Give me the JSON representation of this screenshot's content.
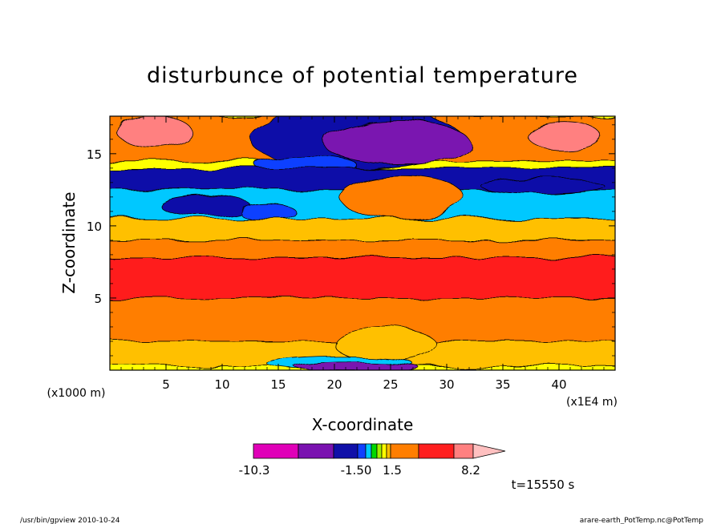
{
  "chart_data": {
    "type": "heatmap",
    "title": "disturbunce of potential temperature",
    "xlabel": "X-coordinate",
    "ylabel": "Z-coordinate",
    "x_unit": "(x1E4 m)",
    "y_unit": "(x1000 m)",
    "xlim": [
      0,
      45
    ],
    "ylim": [
      0,
      17.6
    ],
    "xticks": [
      "5",
      "10",
      "15",
      "20",
      "25",
      "30",
      "35",
      "40"
    ],
    "yticks": [
      "5",
      "10",
      "15"
    ],
    "colorbar": {
      "labels": [
        "-10.3",
        "-1.50",
        "1.5",
        "8.2"
      ],
      "colors": [
        "#e000b8",
        "#7a12b0",
        "#1010a8",
        "#1040ff",
        "#00c8ff",
        "#00d800",
        "#a0f000",
        "#ffff00",
        "#ffc000",
        "#ff7e00",
        "#ff1e1e",
        "#ff8080",
        "#ffc0c0"
      ]
    },
    "fields": [
      {
        "kind": "band",
        "z": [
          14.5,
          17.6
        ],
        "value": 4.0
      },
      {
        "kind": "blob",
        "x": 4,
        "z": 16.5,
        "rx": 3.3,
        "rz": 1.1,
        "value": 8.2
      },
      {
        "kind": "blob",
        "x": 40.5,
        "z": 16.2,
        "rx": 3.2,
        "rz": 1.0,
        "value": 8.2
      },
      {
        "kind": "blob",
        "x": 22,
        "z": 16.0,
        "rx": 9.5,
        "rz": 2.0,
        "value": -3.0
      },
      {
        "kind": "blob",
        "x": 25.5,
        "z": 15.8,
        "rx": 6.5,
        "rz": 1.5,
        "value": -6.0
      },
      {
        "kind": "blob",
        "x": 17.5,
        "z": 14.2,
        "rx": 4.5,
        "rz": 0.7,
        "value": -2.0
      },
      {
        "kind": "band",
        "z": [
          12.5,
          14.0
        ],
        "value": -2.5
      },
      {
        "kind": "band",
        "z": [
          10.5,
          12.5
        ],
        "value": -1.0
      },
      {
        "kind": "blob",
        "x": 8.5,
        "z": 11.4,
        "rx": 4.0,
        "rz": 0.7,
        "value": -3.0
      },
      {
        "kind": "blob",
        "x": 14.0,
        "z": 11.0,
        "rx": 2.5,
        "rz": 0.6,
        "value": -2.0
      },
      {
        "kind": "blob",
        "x": 26.0,
        "z": 12.0,
        "rx": 5.5,
        "rz": 1.5,
        "value": 4.0
      },
      {
        "kind": "blob",
        "x": 38.5,
        "z": 12.8,
        "rx": 5.5,
        "rz": 0.5,
        "value": -2.5
      },
      {
        "kind": "band",
        "z": [
          9.0,
          10.5
        ],
        "value": 1.2
      },
      {
        "kind": "band",
        "z": [
          7.8,
          9.0
        ],
        "value": 4.0
      },
      {
        "kind": "band",
        "z": [
          5.0,
          7.8
        ],
        "value": 7.0
      },
      {
        "kind": "band",
        "z": [
          2.0,
          5.0
        ],
        "value": 4.0
      },
      {
        "kind": "band",
        "z": [
          0.3,
          2.0
        ],
        "value": 1.2
      },
      {
        "kind": "blob",
        "x": 24.5,
        "z": 1.8,
        "rx": 4.5,
        "rz": 1.2,
        "value": 0.8
      },
      {
        "kind": "blob",
        "x": 20.5,
        "z": 0.45,
        "rx": 6.5,
        "rz": 0.5,
        "value": -1.0
      },
      {
        "kind": "blob",
        "x": 22.0,
        "z": 0.2,
        "rx": 5.5,
        "rz": 0.35,
        "value": -4.0
      }
    ]
  },
  "time_label": "t=15550 s",
  "footer": {
    "left": "/usr/bin/gpview   2010-10-24",
    "right": "arare-earth_PotTemp.nc@PotTemp"
  }
}
